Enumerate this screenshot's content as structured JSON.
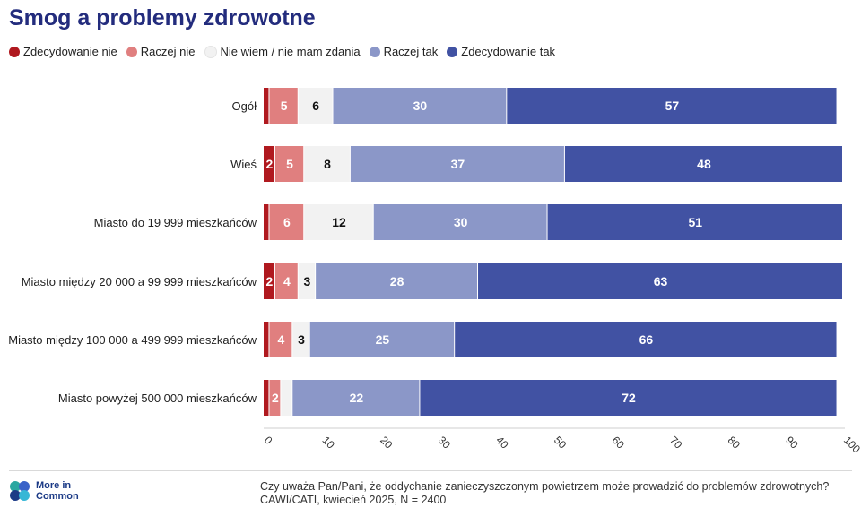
{
  "title": "Smog a problemy zdrowotne",
  "legend": [
    {
      "label": "Zdecydowanie nie",
      "color": "#b0191f"
    },
    {
      "label": "Raczej nie",
      "color": "#e07f7f"
    },
    {
      "label": "Nie wiem / nie mam zdania",
      "color": "#f2f2f2"
    },
    {
      "label": "Raczej tak",
      "color": "#8b97c8"
    },
    {
      "label": "Zdecydowanie tak",
      "color": "#4152a3"
    }
  ],
  "chart_data": {
    "type": "bar",
    "orientation": "horizontal",
    "stacked": true,
    "categories": [
      "Ogół",
      "Wieś",
      "Miasto do 19 999 mieszkańców",
      "Miasto między 20 000 a 99 999 mieszkańców",
      "Miasto między 100 000 a 499 999 mieszkańców",
      "Miasto powyżej 500 000 mieszkańców"
    ],
    "series": [
      {
        "name": "Zdecydowanie nie",
        "values": [
          1,
          2,
          1,
          2,
          1,
          1
        ],
        "labels": [
          "",
          "2",
          "",
          "2",
          "",
          ""
        ],
        "color": "#b0191f",
        "text_color": "#ffffff"
      },
      {
        "name": "Raczej nie",
        "values": [
          5,
          5,
          6,
          4,
          4,
          2
        ],
        "labels": [
          "5",
          "5",
          "6",
          "4",
          "4",
          "2"
        ],
        "color": "#e07f7f",
        "text_color": "#ffffff"
      },
      {
        "name": "Nie wiem / nie mam zdania",
        "values": [
          6,
          8,
          12,
          3,
          3,
          2
        ],
        "labels": [
          "6",
          "8",
          "12",
          "3",
          "3",
          ""
        ],
        "color": "#f2f2f2",
        "text_color": "#111111"
      },
      {
        "name": "Raczej tak",
        "values": [
          30,
          37,
          30,
          28,
          25,
          22
        ],
        "labels": [
          "30",
          "37",
          "30",
          "28",
          "25",
          "22"
        ],
        "color": "#8b97c8",
        "text_color": "#ffffff"
      },
      {
        "name": "Zdecydowanie tak",
        "values": [
          57,
          48,
          51,
          63,
          66,
          72
        ],
        "labels": [
          "57",
          "48",
          "51",
          "63",
          "66",
          "72"
        ],
        "color": "#4152a3",
        "text_color": "#ffffff"
      }
    ],
    "xlim": [
      0,
      100
    ],
    "xticks": [
      0,
      10,
      20,
      30,
      40,
      50,
      60,
      70,
      80,
      90,
      100
    ],
    "grid": false
  },
  "footer": {
    "logo_text": "More in Common",
    "question": "Czy uważa Pan/Pani, że oddychanie zanieczyszczonym powietrzem może prowadzić do problemów zdrowotnych?",
    "source": "CAWI/CATI, kwiecień 2025, N = 2400"
  }
}
